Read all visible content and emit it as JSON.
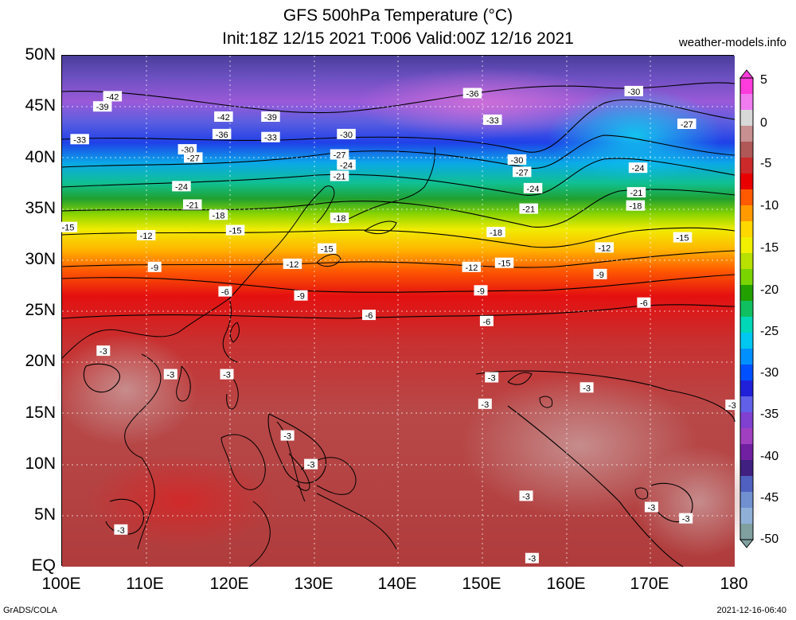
{
  "title": {
    "line1": "GFS 500hPa Temperature (°C)",
    "line2": "Init:18Z 12/15 2021 T:006 Valid:00Z 12/16 2021",
    "site": "weather-models.info"
  },
  "footer": {
    "left": "GrADS/COLA",
    "right": "2021-12-16-06:40"
  },
  "axes": {
    "y_ticks": [
      "50N",
      "45N",
      "40N",
      "35N",
      "30N",
      "25N",
      "20N",
      "15N",
      "10N",
      "5N",
      "EQ"
    ],
    "x_ticks": [
      "100E",
      "110E",
      "120E",
      "130E",
      "140E",
      "150E",
      "160E",
      "170E",
      "180"
    ],
    "lon_range": [
      100,
      180
    ],
    "lat_range": [
      0,
      50
    ]
  },
  "colorbar": {
    "labels": [
      "5",
      "0",
      "-5",
      "-10",
      "-15",
      "-20",
      "-25",
      "-30",
      "-35",
      "-40",
      "-45",
      "-50"
    ],
    "colors": [
      "#ff3cdc",
      "#f07cf0",
      "#d8d8d8",
      "#c89090",
      "#b05858",
      "#cc2a2a",
      "#e80000",
      "#ff5a00",
      "#ff9a00",
      "#ffd800",
      "#f0f000",
      "#b8e000",
      "#7ad400",
      "#22a000",
      "#10c060",
      "#00d8b8",
      "#00c8f0",
      "#0090ff",
      "#0050ff",
      "#2020d8",
      "#6060e8",
      "#8040d0",
      "#a040c0",
      "#7020a0",
      "#402080",
      "#5060c0",
      "#7090d0",
      "#90b0d8",
      "#80a0a0"
    ]
  },
  "contour_labels": [
    {
      "t": "-42",
      "lon": 106.0,
      "lat": 46.0
    },
    {
      "t": "-39",
      "lon": 104.8,
      "lat": 45.0
    },
    {
      "t": "-42",
      "lon": 119.2,
      "lat": 44.0
    },
    {
      "t": "-39",
      "lon": 124.8,
      "lat": 44.0
    },
    {
      "t": "-36",
      "lon": 119.0,
      "lat": 42.3
    },
    {
      "t": "-33",
      "lon": 124.8,
      "lat": 42.0
    },
    {
      "t": "-30",
      "lon": 133.8,
      "lat": 42.3
    },
    {
      "t": "-36",
      "lon": 148.8,
      "lat": 46.3
    },
    {
      "t": "-33",
      "lon": 151.2,
      "lat": 43.7
    },
    {
      "t": "-30",
      "lon": 168.0,
      "lat": 46.5
    },
    {
      "t": "-27",
      "lon": 174.3,
      "lat": 43.3
    },
    {
      "t": "-33",
      "lon": 102.1,
      "lat": 41.8
    },
    {
      "t": "-30",
      "lon": 114.9,
      "lat": 40.8
    },
    {
      "t": "-27",
      "lon": 115.6,
      "lat": 40.0
    },
    {
      "t": "-27",
      "lon": 133.0,
      "lat": 40.3
    },
    {
      "t": "-24",
      "lon": 133.8,
      "lat": 39.3
    },
    {
      "t": "-21",
      "lon": 133.0,
      "lat": 38.2
    },
    {
      "t": "-30",
      "lon": 154.1,
      "lat": 39.8
    },
    {
      "t": "-27",
      "lon": 154.7,
      "lat": 38.6
    },
    {
      "t": "-24",
      "lon": 168.5,
      "lat": 39.0
    },
    {
      "t": "-24",
      "lon": 114.2,
      "lat": 37.2
    },
    {
      "t": "-24",
      "lon": 156.0,
      "lat": 37.0
    },
    {
      "t": "-21",
      "lon": 168.3,
      "lat": 36.6
    },
    {
      "t": "-21",
      "lon": 115.5,
      "lat": 35.4
    },
    {
      "t": "-18",
      "lon": 118.6,
      "lat": 34.4
    },
    {
      "t": "-18",
      "lon": 133.0,
      "lat": 34.1
    },
    {
      "t": "-21",
      "lon": 155.5,
      "lat": 35.0
    },
    {
      "t": "-18",
      "lon": 168.2,
      "lat": 35.3
    },
    {
      "t": "-15",
      "lon": 100.7,
      "lat": 33.2
    },
    {
      "t": "-15",
      "lon": 120.6,
      "lat": 32.9
    },
    {
      "t": "-12",
      "lon": 110.0,
      "lat": 32.4
    },
    {
      "t": "-18",
      "lon": 151.6,
      "lat": 32.7
    },
    {
      "t": "-15",
      "lon": 173.8,
      "lat": 32.2
    },
    {
      "t": "-15",
      "lon": 131.5,
      "lat": 31.1
    },
    {
      "t": "-12",
      "lon": 164.5,
      "lat": 31.2
    },
    {
      "t": "-12",
      "lon": 127.4,
      "lat": 29.6
    },
    {
      "t": "-12",
      "lon": 148.7,
      "lat": 29.3
    },
    {
      "t": "-15",
      "lon": 152.6,
      "lat": 29.7
    },
    {
      "t": "-9",
      "lon": 111.0,
      "lat": 29.3
    },
    {
      "t": "-9",
      "lon": 164.0,
      "lat": 28.6
    },
    {
      "t": "-6",
      "lon": 119.4,
      "lat": 26.9
    },
    {
      "t": "-9",
      "lon": 128.4,
      "lat": 26.5
    },
    {
      "t": "-9",
      "lon": 149.8,
      "lat": 27.0
    },
    {
      "t": "-6",
      "lon": 169.2,
      "lat": 25.8
    },
    {
      "t": "-6",
      "lon": 136.5,
      "lat": 24.6
    },
    {
      "t": "-6",
      "lon": 150.5,
      "lat": 24.0
    },
    {
      "t": "-3",
      "lon": 104.9,
      "lat": 21.1
    },
    {
      "t": "-3",
      "lon": 112.9,
      "lat": 18.8
    },
    {
      "t": "-3",
      "lon": 119.6,
      "lat": 18.8
    },
    {
      "t": "-3",
      "lon": 151.1,
      "lat": 18.5
    },
    {
      "t": "-3",
      "lon": 162.4,
      "lat": 17.5
    },
    {
      "t": "-3",
      "lon": 150.3,
      "lat": 15.9
    },
    {
      "t": "-3",
      "lon": 179.7,
      "lat": 15.8
    },
    {
      "t": "-3",
      "lon": 126.8,
      "lat": 12.8
    },
    {
      "t": "-3",
      "lon": 129.6,
      "lat": 10.0
    },
    {
      "t": "-3",
      "lon": 155.2,
      "lat": 6.9
    },
    {
      "t": "-3",
      "lon": 170.1,
      "lat": 5.8
    },
    {
      "t": "-3",
      "lon": 174.2,
      "lat": 4.7
    },
    {
      "t": "-3",
      "lon": 107.0,
      "lat": 3.6
    },
    {
      "t": "-3",
      "lon": 155.9,
      "lat": 0.8
    }
  ]
}
